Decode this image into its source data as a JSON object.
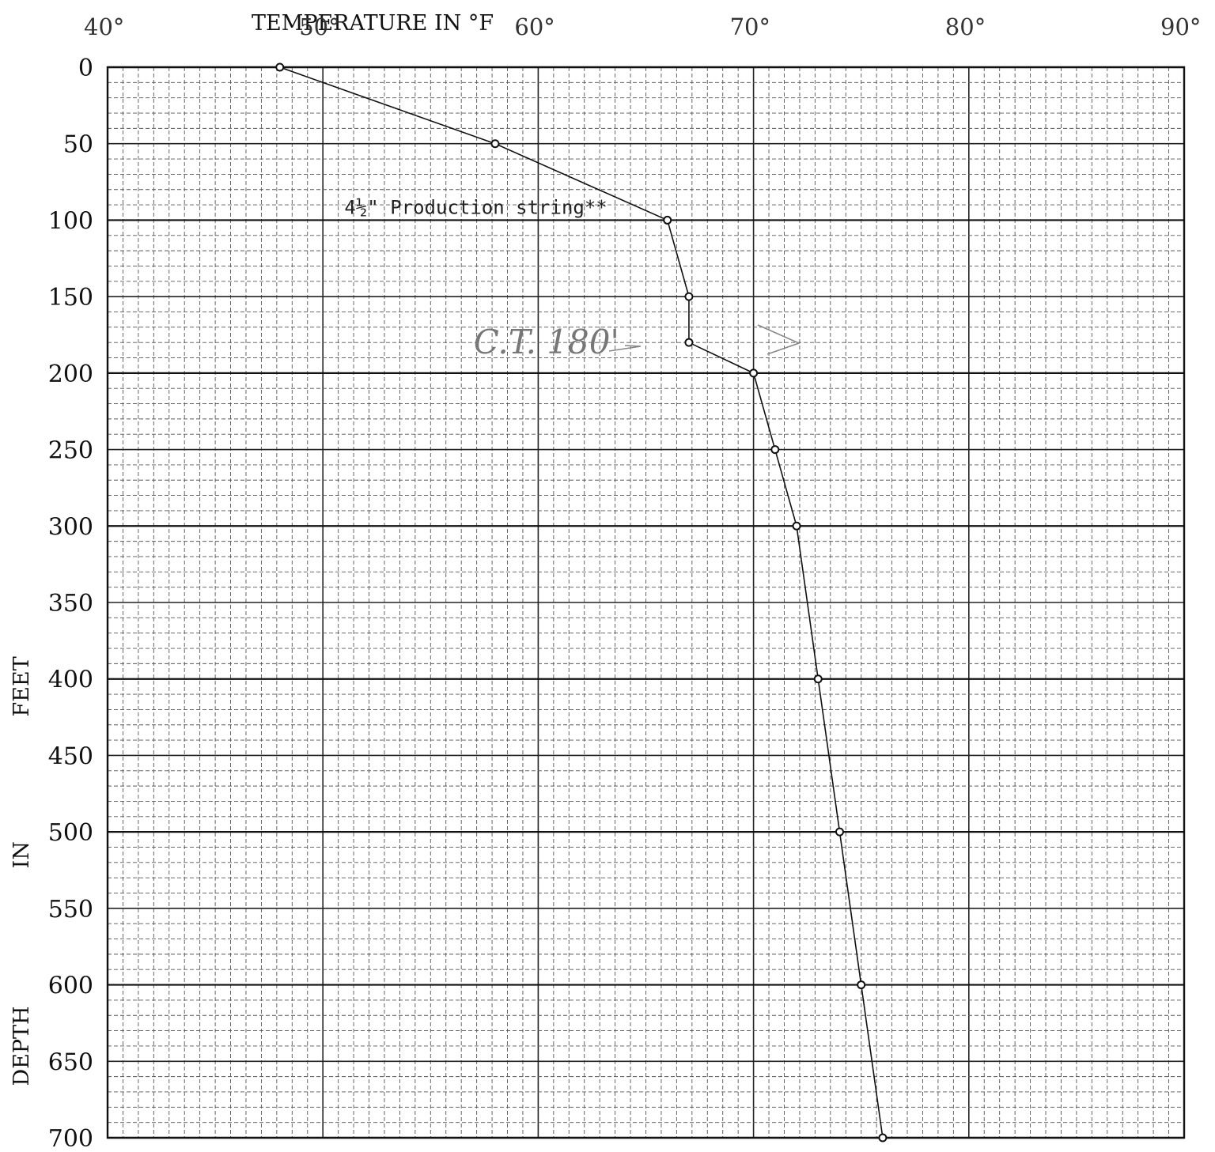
{
  "chart_data": {
    "type": "line",
    "title": "",
    "xlabel": "TEMPERATURE IN °F",
    "ylabel": "DEPTH IN FEET",
    "ylabel_words": [
      "DEPTH",
      "IN",
      "FEET"
    ],
    "xlim": [
      40,
      90
    ],
    "ylim": [
      0,
      700
    ],
    "y_inverted": true,
    "x_axis_position": "top",
    "x_ticks": [
      40,
      50,
      60,
      70,
      80,
      90
    ],
    "x_tick_labels": [
      "40°",
      "50°",
      "60°",
      "70°",
      "80°",
      "90°"
    ],
    "y_ticks": [
      0,
      50,
      100,
      150,
      200,
      250,
      300,
      350,
      400,
      450,
      500,
      550,
      600,
      650,
      700
    ],
    "y_tick_labels": [
      "0",
      "50",
      "100",
      "150",
      "200",
      "250",
      "300",
      "350",
      "400",
      "450",
      "500",
      "550",
      "600",
      "650",
      "700"
    ],
    "grid": true,
    "series": [
      {
        "x": [
          48,
          58,
          66,
          67,
          67,
          70,
          71,
          72,
          73,
          74,
          75,
          76
        ],
        "y": [
          0,
          50,
          100,
          150,
          180,
          200,
          250,
          300,
          400,
          500,
          600,
          700
        ]
      }
    ],
    "annotations": [
      {
        "text": "4½\" Production string**",
        "x": 51,
        "y": 96
      },
      {
        "text": "C.T. 180'",
        "x": 57,
        "y": 180
      }
    ]
  }
}
